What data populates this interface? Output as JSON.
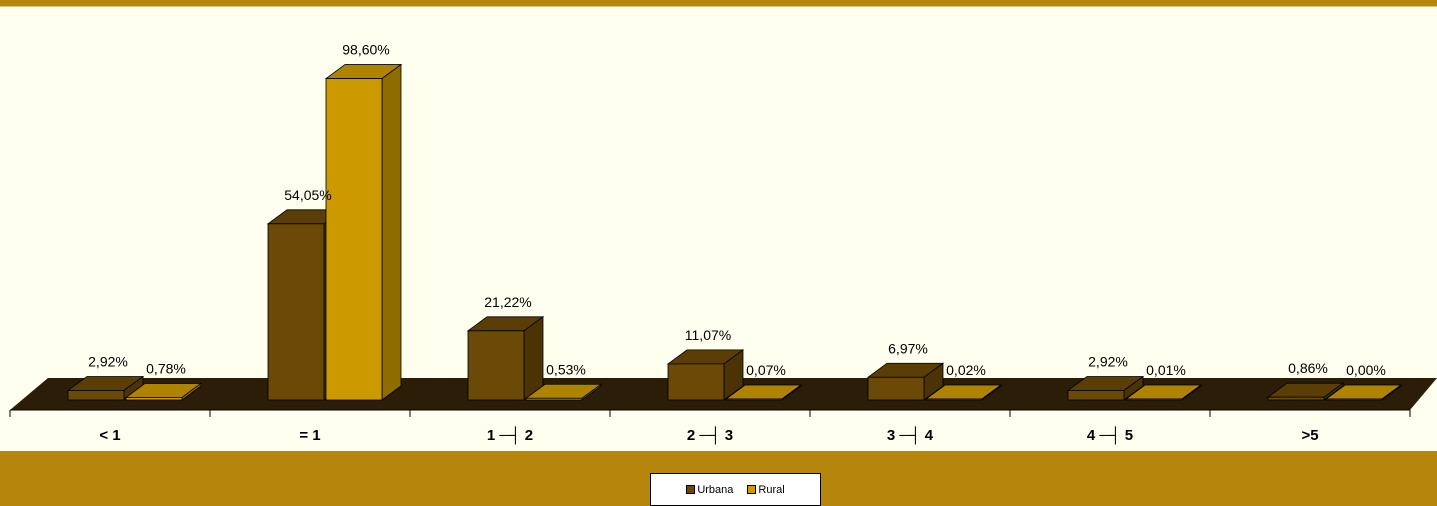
{
  "chart_data": {
    "type": "bar",
    "categories": [
      "< 1",
      "= 1",
      "1 ─┤ 2",
      "2 ─┤ 3",
      "3 ─┤ 4",
      "4 ─┤ 5",
      ">5"
    ],
    "series": [
      {
        "name": "Urbana",
        "color": "#6b4906",
        "values": [
          2.92,
          54.05,
          21.22,
          11.07,
          6.97,
          2.92,
          0.86
        ],
        "labels": [
          "2,92%",
          "54,05%",
          "21,22%",
          "11,07%",
          "6,97%",
          "2,92%",
          "0,86%"
        ]
      },
      {
        "name": "Rural",
        "color": "#cc9a00",
        "values": [
          0.78,
          98.6,
          0.53,
          0.07,
          0.02,
          0.01,
          0.0
        ],
        "labels": [
          "0,78%",
          "98,60%",
          "0,53%",
          "0,07%",
          "0,02%",
          "0,01%",
          "0,00%"
        ]
      }
    ],
    "ylim": [
      0,
      100
    ],
    "grid": false,
    "legend_position": "bottom",
    "colors": {
      "background": "#b5860b",
      "plot_area": "#fffff0",
      "floor": "#2b1d07"
    }
  }
}
